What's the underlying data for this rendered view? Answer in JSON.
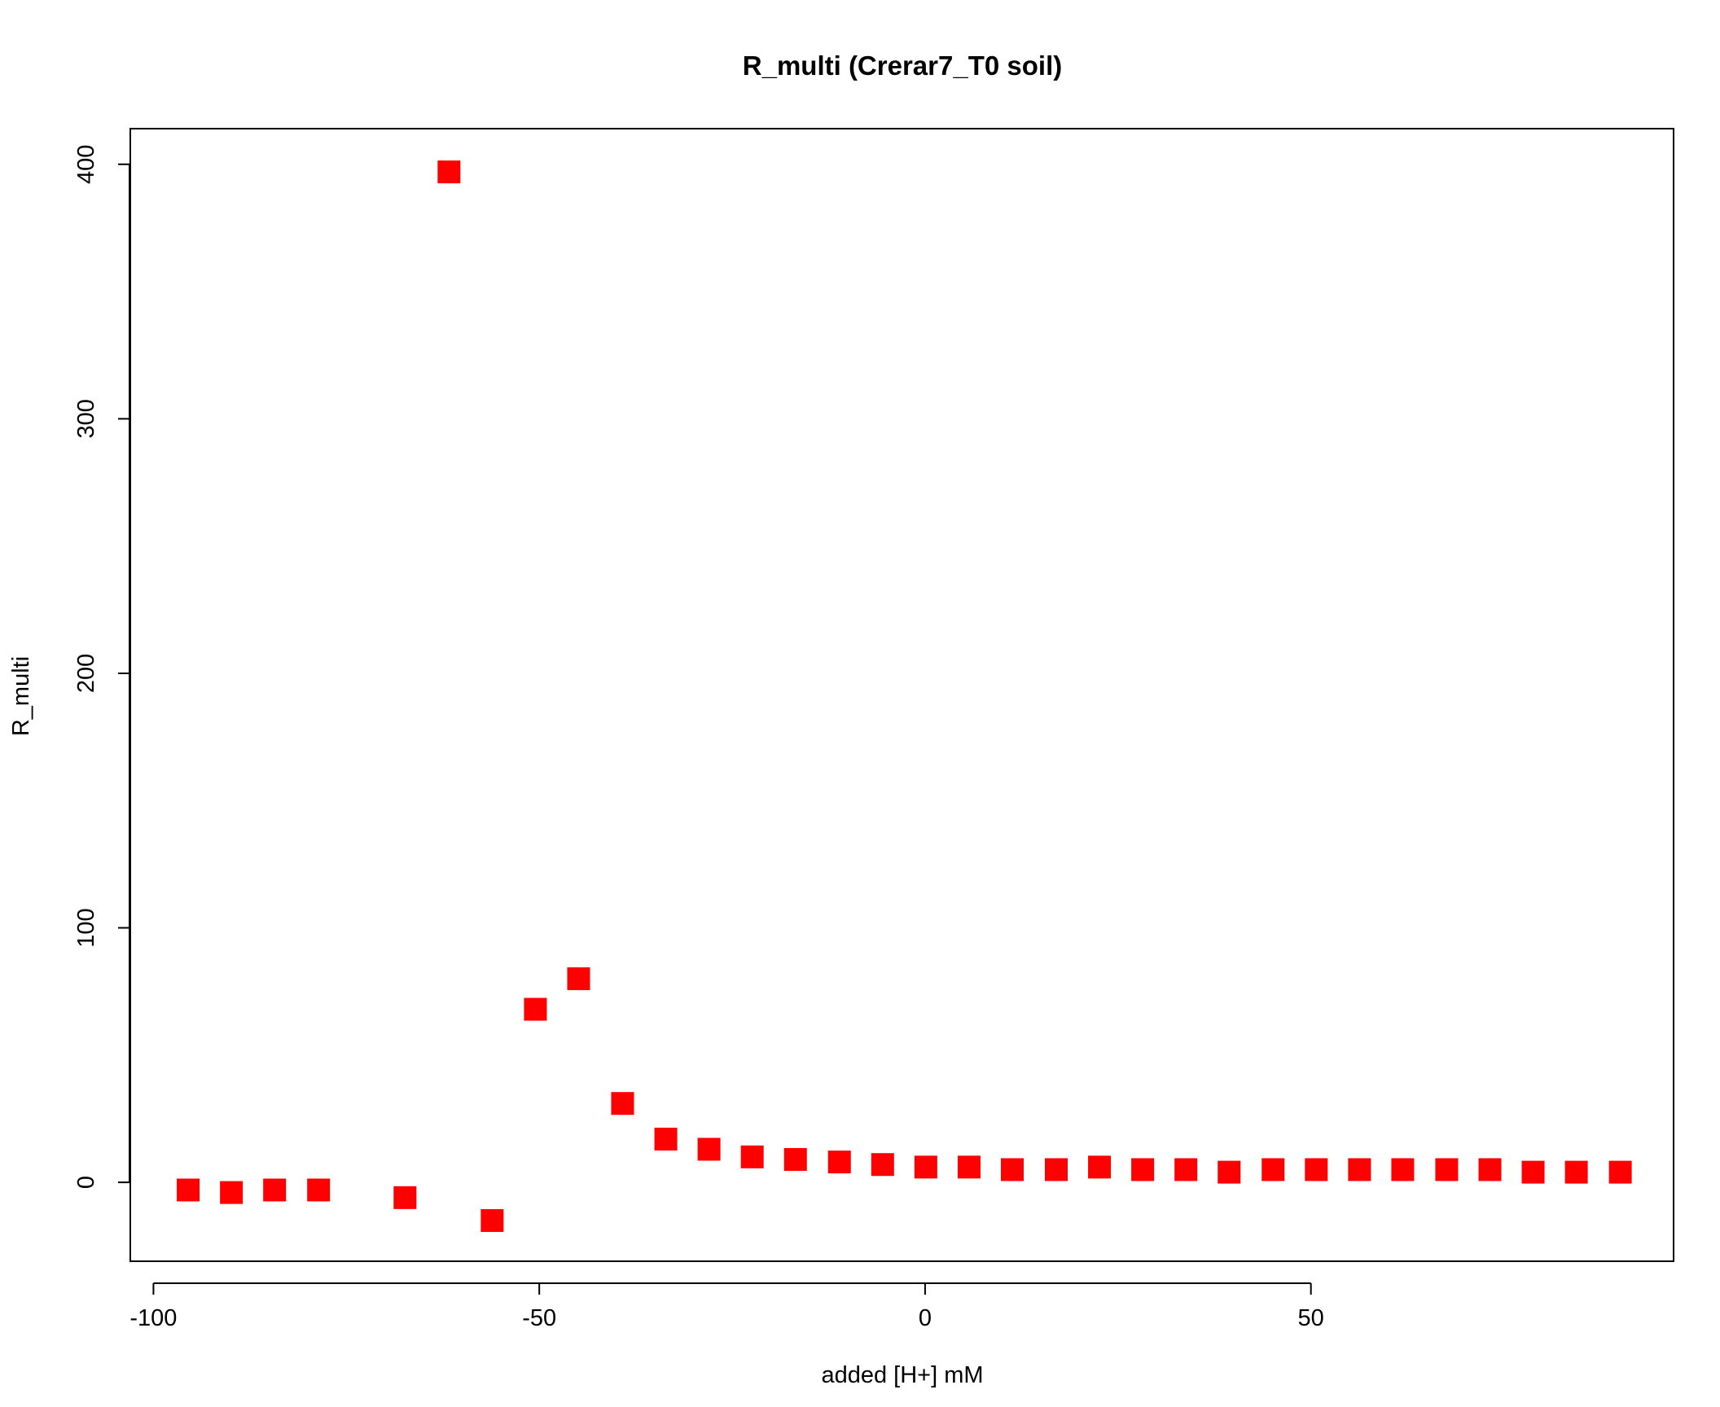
{
  "chart_data": {
    "type": "scatter",
    "title": "R_multi (Crerar7_T0 soil)",
    "xlabel": "added [H+] mM",
    "ylabel": "R_multi",
    "xlim": [
      -103,
      97
    ],
    "ylim": [
      -31,
      414
    ],
    "x_ticks": [
      -100,
      -50,
      0,
      50
    ],
    "x_tick_labels": [
      "-100",
      "-50",
      "0",
      "50"
    ],
    "y_ticks": [
      0,
      100,
      200,
      300,
      400
    ],
    "y_tick_labels": [
      "0",
      "100",
      "200",
      "300",
      "400"
    ],
    "marker": "square",
    "color": "#ff0000",
    "grid": false,
    "legend": "none",
    "series": [
      {
        "x": [
          -95.5,
          -89.9,
          -84.3,
          -78.6,
          -67.4,
          -61.7,
          -56.1,
          -50.5,
          -44.9,
          -39.2,
          -33.6,
          -28.0,
          -22.4,
          -16.8,
          -11.1,
          -5.5,
          0.1,
          5.7,
          11.3,
          17.0,
          22.6,
          28.2,
          33.8,
          39.4,
          45.1,
          50.7,
          56.3,
          61.9,
          67.6,
          73.2,
          78.8,
          84.4,
          90.1
        ],
        "y": [
          -3,
          -4,
          -3,
          -3,
          -6,
          397,
          -15,
          68,
          80,
          31,
          17,
          13,
          10,
          9,
          8,
          7,
          6,
          6,
          5,
          5,
          6,
          5,
          5,
          4,
          5,
          5,
          5,
          5,
          5,
          5,
          4,
          4,
          4
        ]
      }
    ]
  }
}
